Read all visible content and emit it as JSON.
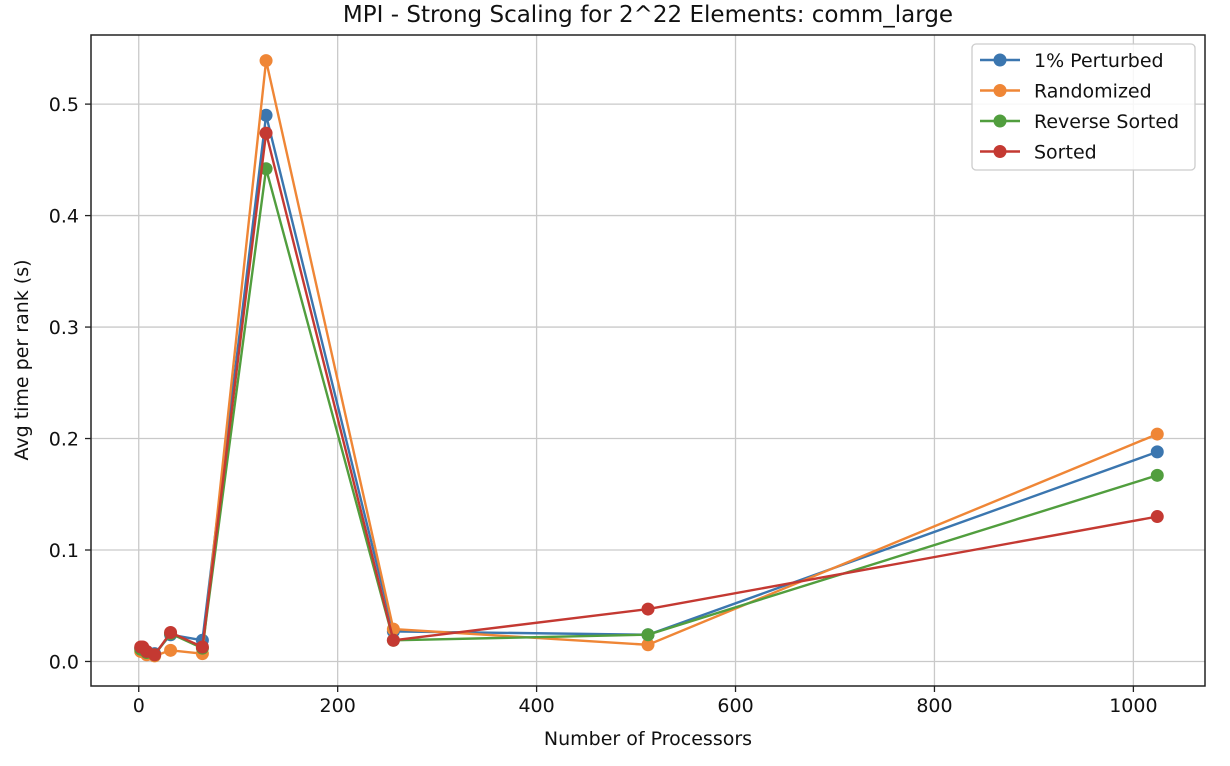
{
  "chart_data": {
    "type": "line",
    "title": "MPI - Strong Scaling for 2^22 Elements: comm_large",
    "xlabel": "Number of Processors",
    "ylabel": "Avg time per rank (s)",
    "x": [
      2,
      4,
      8,
      16,
      32,
      64,
      128,
      256,
      512,
      1024
    ],
    "xlim": [
      -48,
      1072
    ],
    "ylim": [
      -0.022,
      0.562
    ],
    "xticks": [
      0,
      200,
      400,
      600,
      800,
      1000
    ],
    "xtick_labels": [
      "0",
      "200",
      "400",
      "600",
      "800",
      "1000"
    ],
    "yticks": [
      0.0,
      0.1,
      0.2,
      0.3,
      0.4,
      0.5
    ],
    "ytick_labels": [
      "0.0",
      "0.1",
      "0.2",
      "0.3",
      "0.4",
      "0.5"
    ],
    "grid": true,
    "legend_position": "top-right",
    "series": [
      {
        "name": "1% Perturbed",
        "color": "#3b76af",
        "values": [
          0.012,
          0.011,
          0.009,
          0.007,
          0.024,
          0.019,
          0.49,
          0.027,
          0.024,
          0.188
        ]
      },
      {
        "name": "Randomized",
        "color": "#ef8636",
        "values": [
          0.009,
          0.009,
          0.006,
          0.005,
          0.01,
          0.007,
          0.539,
          0.029,
          0.015,
          0.204
        ]
      },
      {
        "name": "Reverse Sorted",
        "color": "#519e3e",
        "values": [
          0.011,
          0.012,
          0.008,
          0.006,
          0.025,
          0.012,
          0.442,
          0.019,
          0.024,
          0.167
        ]
      },
      {
        "name": "Sorted",
        "color": "#c43932",
        "values": [
          0.013,
          0.013,
          0.009,
          0.006,
          0.026,
          0.013,
          0.474,
          0.019,
          0.047,
          0.13
        ]
      }
    ]
  }
}
